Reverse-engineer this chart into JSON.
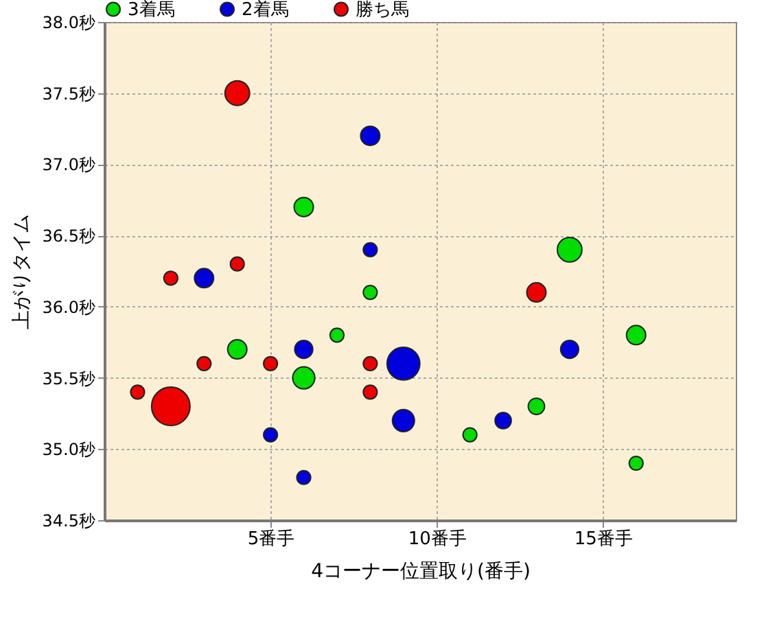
{
  "chart_data": {
    "type": "bubble",
    "xlabel": "4コーナー位置取り(番手)",
    "ylabel": "上がりタイム",
    "xlim": [
      0,
      19
    ],
    "xticks": [
      {
        "value": 5,
        "label": "5番手"
      },
      {
        "value": 10,
        "label": "10番手"
      },
      {
        "value": 15,
        "label": "15番手"
      }
    ],
    "ylim": [
      34.5,
      38.0
    ],
    "yticks": [
      {
        "value": 34.5,
        "label": "34.5秒"
      },
      {
        "value": 35.0,
        "label": "35.0秒"
      },
      {
        "value": 35.5,
        "label": "35.5秒"
      },
      {
        "value": 36.0,
        "label": "36.0秒"
      },
      {
        "value": 36.5,
        "label": "36.5秒"
      },
      {
        "value": 37.0,
        "label": "37.0秒"
      },
      {
        "value": 37.5,
        "label": "37.5秒"
      },
      {
        "value": 38.0,
        "label": "38.0秒"
      }
    ],
    "grid": true,
    "legend": "top",
    "marker": "circle",
    "relative": false,
    "series": [
      {
        "name": "3着馬",
        "color": "#00dd00",
        "x": [
          6,
          8,
          7,
          4,
          6,
          14,
          16,
          13,
          11,
          16
        ],
        "values": [
          36.7,
          36.1,
          35.8,
          35.7,
          35.5,
          36.4,
          35.8,
          35.3,
          35.1,
          34.9
        ],
        "sizes": [
          0.25,
          0.13,
          0.13,
          0.25,
          0.33,
          0.41,
          0.25,
          0.18,
          0.13,
          0.13
        ]
      },
      {
        "name": "2着馬",
        "color": "#0000dd",
        "x": [
          3,
          8,
          6,
          9,
          9,
          5,
          6,
          8,
          14,
          12
        ],
        "values": [
          36.2,
          36.4,
          35.7,
          35.6,
          35.2,
          35.1,
          34.8,
          37.2,
          35.7,
          35.2
        ],
        "sizes": [
          0.25,
          0.13,
          0.22,
          0.73,
          0.33,
          0.13,
          0.13,
          0.25,
          0.22,
          0.18
        ]
      },
      {
        "name": "勝ち馬",
        "color": "#ee0000",
        "x": [
          4,
          2,
          4,
          3,
          5,
          8,
          1,
          8,
          2,
          13
        ],
        "values": [
          37.5,
          36.2,
          36.3,
          35.6,
          35.6,
          35.6,
          35.4,
          35.4,
          35.3,
          36.1
        ],
        "sizes": [
          0.41,
          0.13,
          0.13,
          0.13,
          0.13,
          0.13,
          0.13,
          0.13,
          1,
          0.25
        ]
      }
    ]
  }
}
